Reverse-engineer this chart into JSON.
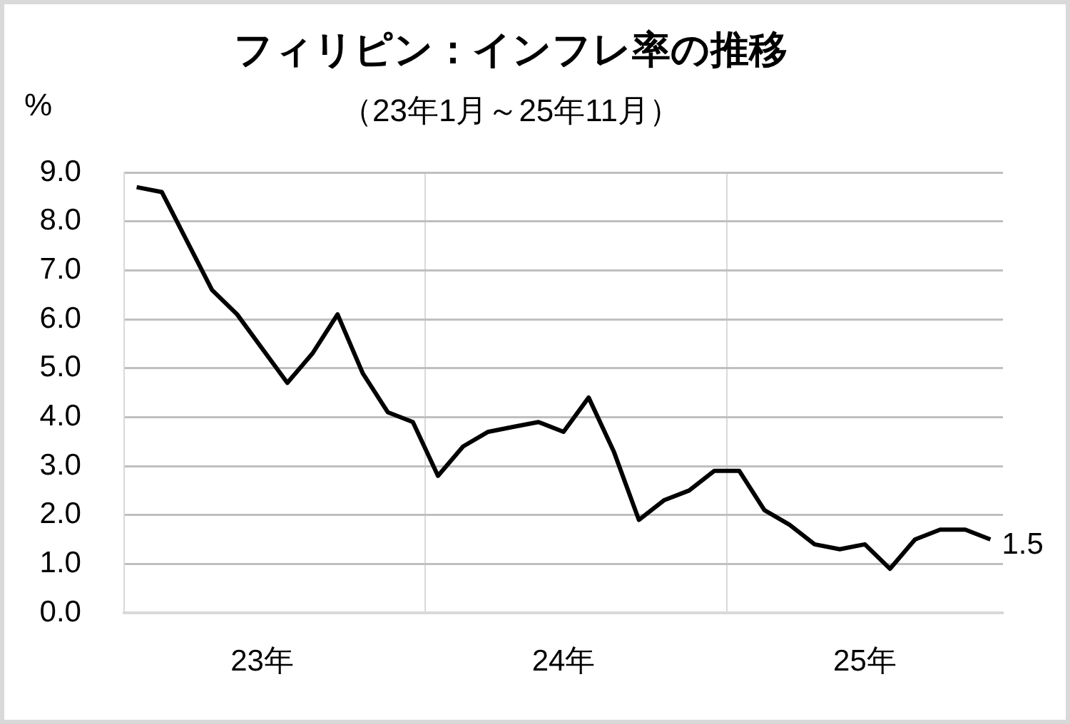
{
  "chart_data": {
    "type": "line",
    "title": "フィリピン：インフレ率の推移",
    "subtitle": "（23年1月～25年11月）",
    "ylabel": "%",
    "categories": [
      null,
      null,
      null,
      null,
      null,
      "23年",
      null,
      null,
      null,
      null,
      null,
      null,
      null,
      null,
      null,
      null,
      null,
      "24年",
      null,
      null,
      null,
      null,
      null,
      null,
      null,
      null,
      null,
      null,
      null,
      "25年",
      null,
      null,
      null,
      null,
      null
    ],
    "series": [
      {
        "color": "#000000",
        "values": [
          8.7,
          8.6,
          7.6,
          6.6,
          6.1,
          5.4,
          4.7,
          5.3,
          6.1,
          4.9,
          4.1,
          3.9,
          2.8,
          3.4,
          3.7,
          3.8,
          3.9,
          3.7,
          4.4,
          3.3,
          1.9,
          2.3,
          2.5,
          2.9,
          2.9,
          2.1,
          1.8,
          1.4,
          1.3,
          1.4,
          0.9,
          1.5,
          1.7,
          1.7,
          1.5
        ],
        "value_labels": [
          null,
          null,
          null,
          null,
          null,
          null,
          null,
          null,
          null,
          null,
          null,
          null,
          null,
          null,
          null,
          null,
          null,
          null,
          null,
          null,
          null,
          null,
          null,
          null,
          null,
          null,
          null,
          null,
          null,
          null,
          null,
          null,
          null,
          null,
          "1.5"
        ]
      }
    ],
    "ylim": [
      0,
      9
    ],
    "yticks": [
      {
        "value": 0,
        "label": "0.0"
      },
      {
        "value": 1,
        "label": "1.0"
      },
      {
        "value": 2,
        "label": "2.0"
      },
      {
        "value": 3,
        "label": "3.0"
      },
      {
        "value": 4,
        "label": "4.0"
      },
      {
        "value": 5,
        "label": "5.0"
      },
      {
        "value": 6,
        "label": "6.0"
      },
      {
        "value": 7,
        "label": "7.0"
      },
      {
        "value": 8,
        "label": "8.0"
      },
      {
        "value": 9,
        "label": "9.0"
      }
    ],
    "grid": true,
    "legend": false,
    "marker": "none",
    "line_style": "solid"
  }
}
